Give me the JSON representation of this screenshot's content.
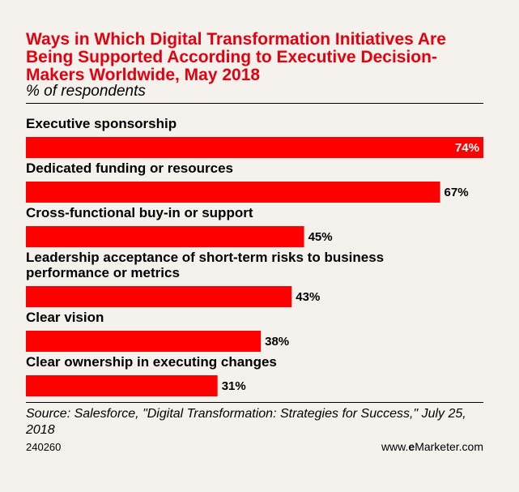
{
  "title": "Ways in Which Digital Transformation Initiatives Are Being Supported According to Executive Decision-Makers Worldwide, May 2018",
  "subtitle": "% of respondents",
  "source": "Source: Salesforce, \"Digital Transformation: Strategies for Success,\" July 25, 2018",
  "chart_id": "240260",
  "brand": {
    "prefix": "www.",
    "bold": "e",
    "name": "Marketer",
    "suffix": ".com"
  },
  "colors": {
    "bar": "#ff0000",
    "title": "#e3000f",
    "background": "#f5f2ee"
  },
  "chart_data": {
    "type": "bar",
    "orientation": "horizontal",
    "categories": [
      "Executive sponsorship",
      "Dedicated funding or resources",
      "Cross-functional buy-in or support",
      "Leadership acceptance of short-term risks to business performance or metrics",
      "Clear vision",
      "Clear ownership in executing changes"
    ],
    "category_lines": [
      [
        "Executive sponsorship"
      ],
      [
        "Dedicated funding or resources"
      ],
      [
        "Cross-functional buy-in or support"
      ],
      [
        "Leadership acceptance of short-term risks to business",
        "performance or metrics"
      ],
      [
        "Clear vision"
      ],
      [
        "Clear ownership in executing changes"
      ]
    ],
    "values": [
      74,
      67,
      45,
      43,
      38,
      31
    ],
    "value_labels": [
      "74%",
      "67%",
      "45%",
      "43%",
      "38%",
      "31%"
    ],
    "unit": "%",
    "xlim": [
      0,
      74
    ],
    "grid": false,
    "legend": "none"
  }
}
